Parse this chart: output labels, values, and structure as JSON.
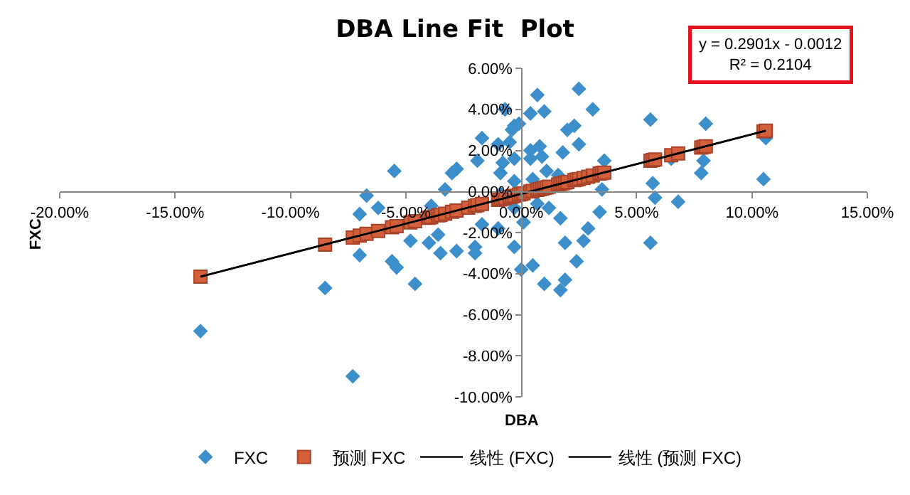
{
  "chart_data": {
    "type": "scatter",
    "title": "DBA Line Fit  Plot",
    "xlabel": "DBA",
    "ylabel": "FXC",
    "annotations": [
      "y = 0.2901x - 0.0012",
      "R² = 0.2104"
    ],
    "xlim": [
      -0.2,
      0.15
    ],
    "xticks": [
      {
        "value": -0.2,
        "label": "-20.00%"
      },
      {
        "value": -0.15,
        "label": "-15.00%"
      },
      {
        "value": -0.1,
        "label": "-10.00%"
      },
      {
        "value": -0.05,
        "label": "-5.00%"
      },
      {
        "value": 0,
        "label": "0.00%"
      },
      {
        "value": 0.05,
        "label": "5.00%"
      },
      {
        "value": 0.1,
        "label": "10.00%"
      },
      {
        "value": 0.15,
        "label": "15.00%"
      }
    ],
    "ylim": [
      -0.1,
      0.06
    ],
    "yticks": [
      {
        "value": -0.1,
        "label": "-10.00%"
      },
      {
        "value": -0.08,
        "label": "-8.00%"
      },
      {
        "value": -0.06,
        "label": "-6.00%"
      },
      {
        "value": -0.04,
        "label": "-4.00%"
      },
      {
        "value": -0.02,
        "label": "-2.00%"
      },
      {
        "value": 0,
        "label": "0.00%"
      },
      {
        "value": 0.02,
        "label": "2.00%"
      },
      {
        "value": 0.04,
        "label": "4.00%"
      },
      {
        "value": 0.06,
        "label": "6.00%"
      }
    ],
    "grid": false,
    "legend": "bottom",
    "series": [
      {
        "name": "FXC",
        "marker": "diamond",
        "color": "#3d8fcc",
        "x": [
          -0.139,
          -0.085,
          -0.073,
          -0.07,
          -0.067,
          -0.07,
          -0.062,
          -0.055,
          -0.056,
          -0.054,
          -0.048,
          -0.046,
          -0.04,
          -0.039,
          -0.036,
          -0.035,
          -0.033,
          -0.03,
          -0.028,
          -0.028,
          -0.02,
          -0.02,
          -0.019,
          -0.017,
          -0.017,
          -0.01,
          -0.009,
          -0.008,
          -0.007,
          -0.01,
          -0.005,
          -0.004,
          -0.009,
          -0.003,
          -0.003,
          -0.003,
          -0.001,
          -0.003,
          0.007,
          0.004,
          0.01,
          0.004,
          0.008,
          0.004,
          0.009,
          0.011,
          0.005,
          -0.003,
          0.016,
          0.018,
          0.02,
          0.023,
          0.025,
          0.025,
          0.031,
          0.036,
          0.035,
          0.034,
          0.029,
          0.027,
          0.024,
          0.019,
          0.017,
          0.019,
          0.017,
          0.01,
          0.005,
          0.0,
          0.001,
          0.007,
          0.012,
          0.056,
          0.057,
          0.058,
          0.056,
          0.068,
          0.065,
          0.08,
          0.079,
          0.078,
          0.105,
          0.106
        ],
        "values": [
          -0.068,
          -0.047,
          -0.09,
          -0.031,
          -0.002,
          -0.011,
          -0.008,
          0.01,
          -0.034,
          -0.037,
          -0.024,
          -0.045,
          -0.025,
          -0.007,
          -0.021,
          -0.03,
          0.001,
          0.009,
          0.011,
          -0.029,
          -0.027,
          -0.03,
          0.015,
          0.026,
          -0.016,
          0.023,
          0.009,
          0.014,
          0.04,
          -0.018,
          0.024,
          0.03,
          -0.001,
          -0.008,
          -0.027,
          0.032,
          0.033,
          0.016,
          0.047,
          0.038,
          0.039,
          0.02,
          0.022,
          0.016,
          0.017,
          0.01,
          0.006,
          0.005,
          0.008,
          0.019,
          0.03,
          0.032,
          0.05,
          0.023,
          0.04,
          0.015,
          0.001,
          -0.01,
          -0.018,
          -0.024,
          -0.034,
          -0.025,
          -0.013,
          -0.043,
          -0.048,
          -0.045,
          -0.036,
          -0.038,
          -0.015,
          -0.006,
          -0.008,
          0.035,
          0.004,
          -0.003,
          -0.025,
          -0.005,
          0.016,
          0.033,
          0.015,
          0.009,
          0.006,
          0.026
        ]
      },
      {
        "name": "预测 FXC",
        "marker": "square",
        "color": "#d3603b",
        "x": [
          -0.139,
          -0.085,
          -0.073,
          -0.07,
          -0.067,
          -0.062,
          -0.056,
          -0.054,
          -0.048,
          -0.046,
          -0.04,
          -0.039,
          -0.036,
          -0.035,
          -0.033,
          -0.03,
          -0.028,
          -0.023,
          -0.02,
          -0.019,
          -0.017,
          -0.01,
          -0.009,
          -0.008,
          -0.007,
          -0.005,
          -0.004,
          -0.003,
          -0.001,
          0.0,
          0.001,
          0.004,
          0.005,
          0.007,
          0.008,
          0.009,
          0.01,
          0.011,
          0.012,
          0.016,
          0.017,
          0.018,
          0.019,
          0.02,
          0.023,
          0.024,
          0.025,
          0.027,
          0.029,
          0.031,
          0.034,
          0.035,
          0.036,
          0.056,
          0.057,
          0.058,
          0.065,
          0.068,
          0.078,
          0.079,
          0.08,
          0.105,
          0.106
        ],
        "values": [
          -0.0415,
          -0.0259,
          -0.0224,
          -0.0215,
          -0.0206,
          -0.0192,
          -0.0174,
          -0.0169,
          -0.0151,
          -0.0145,
          -0.0128,
          -0.0125,
          -0.0116,
          -0.0114,
          -0.0108,
          -0.0099,
          -0.0093,
          -0.0079,
          -0.007,
          -0.0067,
          -0.0061,
          -0.0041,
          -0.0038,
          -0.0035,
          -0.0032,
          -0.0027,
          -0.0024,
          -0.0021,
          -0.0015,
          -0.0012,
          -0.0009,
          0.0,
          0.0003,
          0.0008,
          0.0011,
          0.0014,
          0.0017,
          0.002,
          0.0023,
          0.0034,
          0.0037,
          0.004,
          0.0043,
          0.0046,
          0.0055,
          0.0058,
          0.0061,
          0.0066,
          0.0072,
          0.0078,
          0.0087,
          0.009,
          0.0092,
          0.015,
          0.0153,
          0.0156,
          0.0177,
          0.0185,
          0.0214,
          0.0217,
          0.022,
          0.0293,
          0.0296
        ]
      },
      {
        "name": "线性 (FXC)",
        "type": "line",
        "marker": "none",
        "line_style": "solid",
        "color": "#000000",
        "x": [
          -0.139,
          0.106
        ],
        "values": [
          -0.0415,
          0.0296
        ]
      },
      {
        "name": "线性 (预测 FXC)",
        "type": "line",
        "marker": "none",
        "line_style": "solid",
        "color": "#000000",
        "x": [
          -0.139,
          0.106
        ],
        "values": [
          -0.0415,
          0.0296
        ]
      }
    ]
  }
}
